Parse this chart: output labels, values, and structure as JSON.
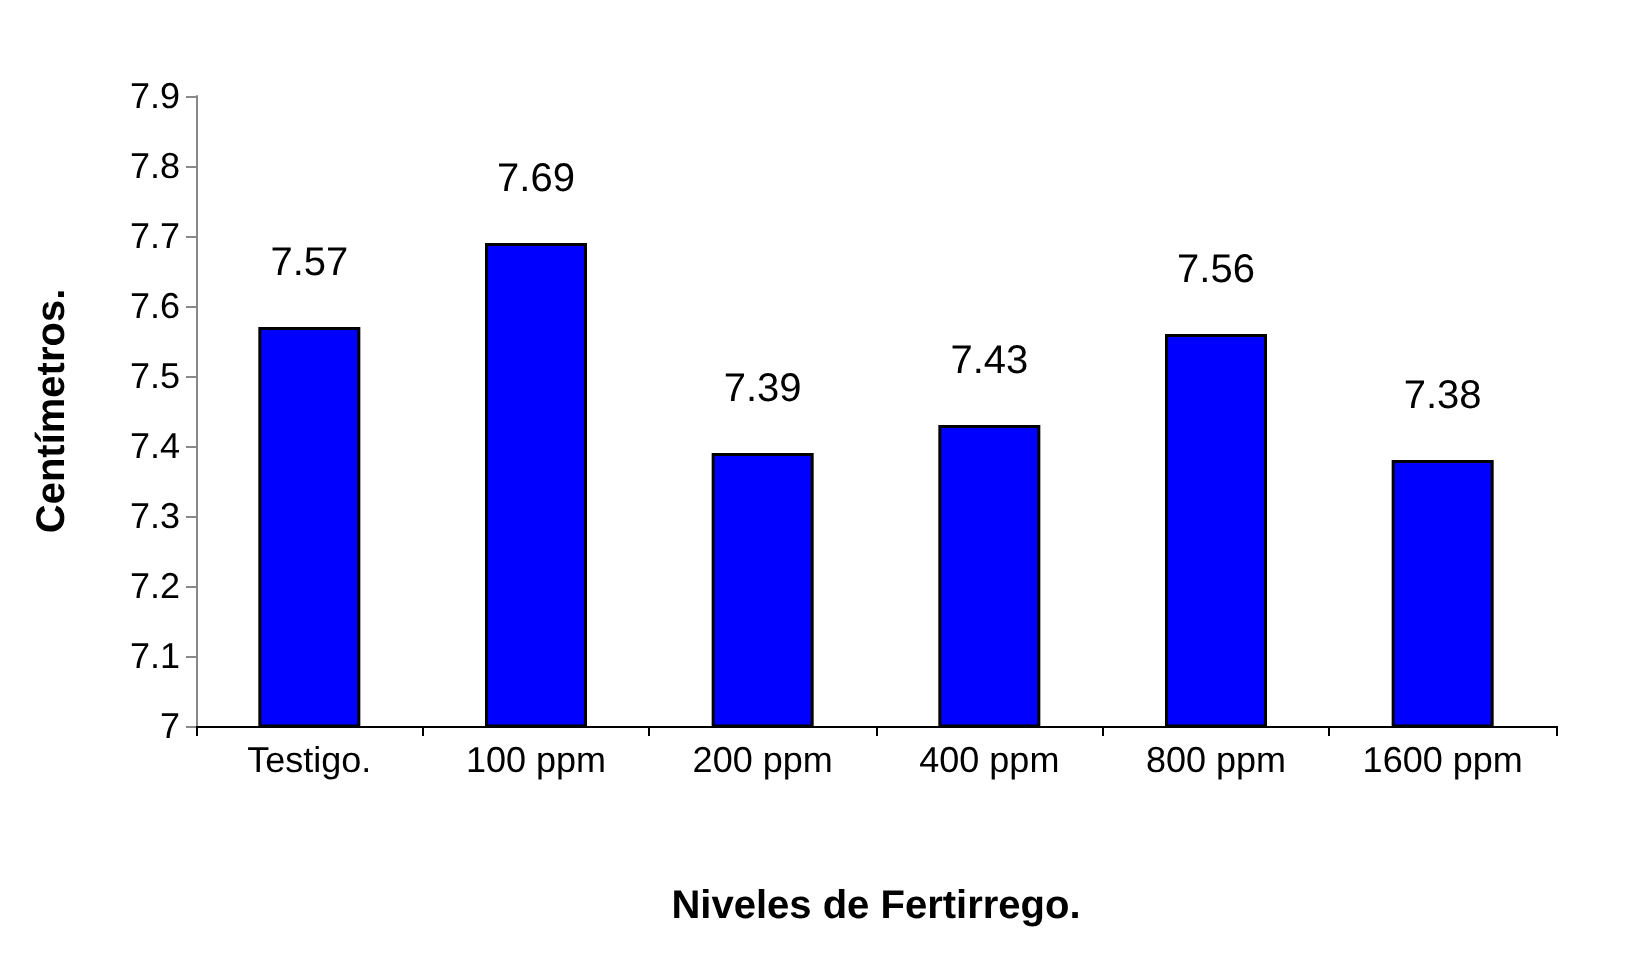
{
  "chart_data": {
    "type": "bar",
    "xlabel": "Niveles de Fertirrego.",
    "ylabel": "Centímetros.",
    "categories": [
      "Testigo.",
      "100 ppm",
      "200 ppm",
      "400 ppm",
      "800 ppm",
      "1600 ppm"
    ],
    "values": [
      7.57,
      7.69,
      7.39,
      7.43,
      7.56,
      7.38
    ],
    "color": "#0000ff",
    "ylim": [
      7,
      7.9
    ],
    "yticks": [
      7,
      7.1,
      7.2,
      7.3,
      7.4,
      7.5,
      7.6,
      7.7,
      7.8,
      7.9
    ],
    "data_labels": true
  }
}
